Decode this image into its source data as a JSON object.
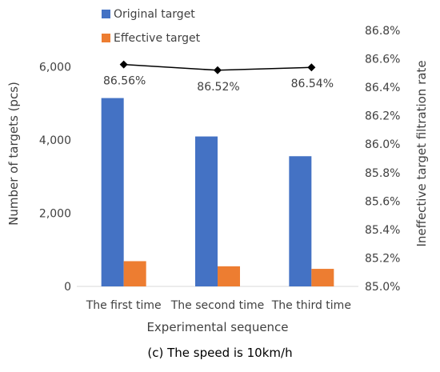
{
  "chart_data": {
    "type": "bar",
    "categories": [
      "The first time",
      "The second time",
      "The third time"
    ],
    "series": [
      {
        "name": "Original target",
        "values": [
          5150,
          4100,
          3560
        ],
        "color": "#4472C4",
        "axis": "left",
        "kind": "bar"
      },
      {
        "name": "Effective target",
        "values": [
          690,
          550,
          480
        ],
        "color": "#ED7D31",
        "axis": "left",
        "kind": "bar"
      },
      {
        "values": [
          86.56,
          86.52,
          86.54
        ],
        "labels": [
          "86.56%",
          "86.52%",
          "86.54%"
        ],
        "color": "#000000",
        "axis": "right",
        "kind": "line"
      }
    ],
    "xlabel": "Experimental sequence",
    "ylabel": "Number of targets (pcs)",
    "y2label": "Ineffective target filtration rate",
    "ylim": [
      0,
      7000
    ],
    "y2lim": [
      85.0,
      86.8
    ],
    "yticks": [
      0,
      2000,
      4000,
      6000
    ],
    "yticklabels": [
      "0",
      "2,000",
      "4,000",
      "6,000"
    ],
    "y2ticks": [
      85.0,
      85.2,
      85.4,
      85.6,
      85.8,
      86.0,
      86.2,
      86.4,
      86.6,
      86.8
    ],
    "y2ticklabels": [
      "85.0%",
      "85.2%",
      "85.4%",
      "85.6%",
      "85.8%",
      "86.0%",
      "86.2%",
      "86.4%",
      "86.6%",
      "86.8%"
    ],
    "legend": "top-left",
    "grid": false
  },
  "caption": "(c) The speed is 10km/h"
}
